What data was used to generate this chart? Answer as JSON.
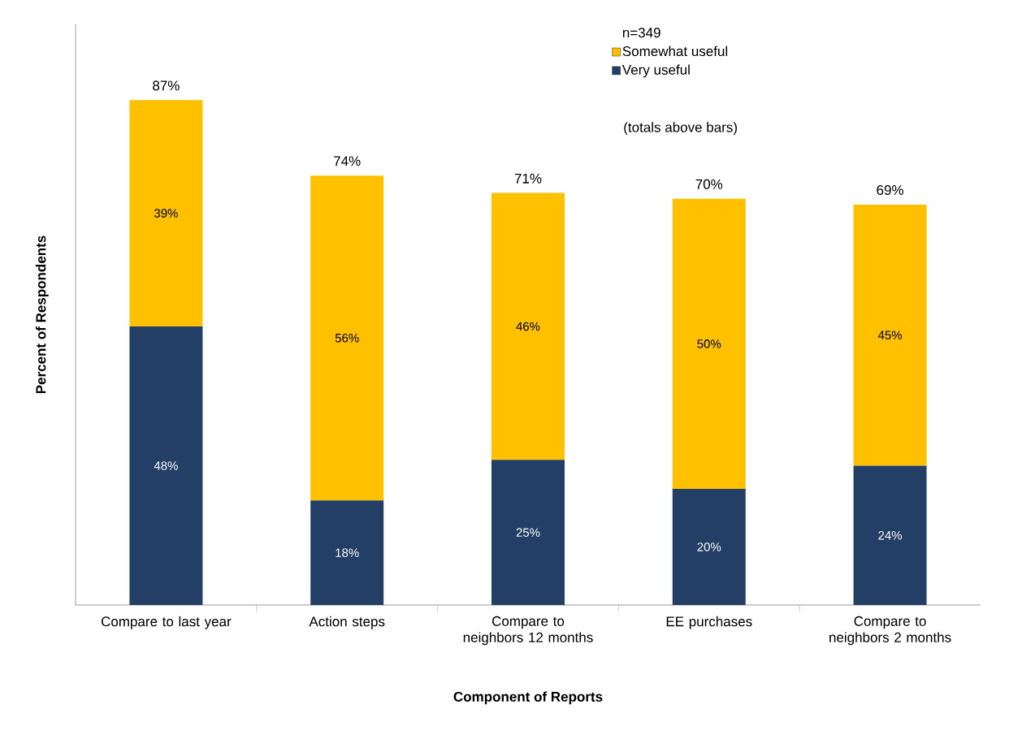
{
  "chart_data": {
    "type": "bar",
    "stacked": true,
    "xlabel": "Component of Reports",
    "ylabel": "Percent of Respondents",
    "legend_title": "n=349",
    "legend": "top right",
    "annotations": [
      "(totals above bars)"
    ],
    "categories": [
      "Compare to last year",
      "Action steps",
      "Compare to neighbors 12 months",
      "EE purchases",
      "Compare to neighbors 2 months"
    ],
    "series": [
      {
        "name": "Very useful",
        "color": "#243f66",
        "values": [
          48,
          18,
          25,
          20,
          24
        ],
        "value_labels": [
          "48%",
          "18%",
          "25%",
          "20%",
          "24%"
        ]
      },
      {
        "name": "Somewhat useful",
        "color": "#ffc000",
        "values": [
          39,
          56,
          46,
          50,
          45
        ],
        "value_labels": [
          "39%",
          "56%",
          "46%",
          "50%",
          "45%"
        ]
      }
    ],
    "totals": [
      "87%",
      "74%",
      "71%",
      "70%",
      "69%"
    ]
  }
}
